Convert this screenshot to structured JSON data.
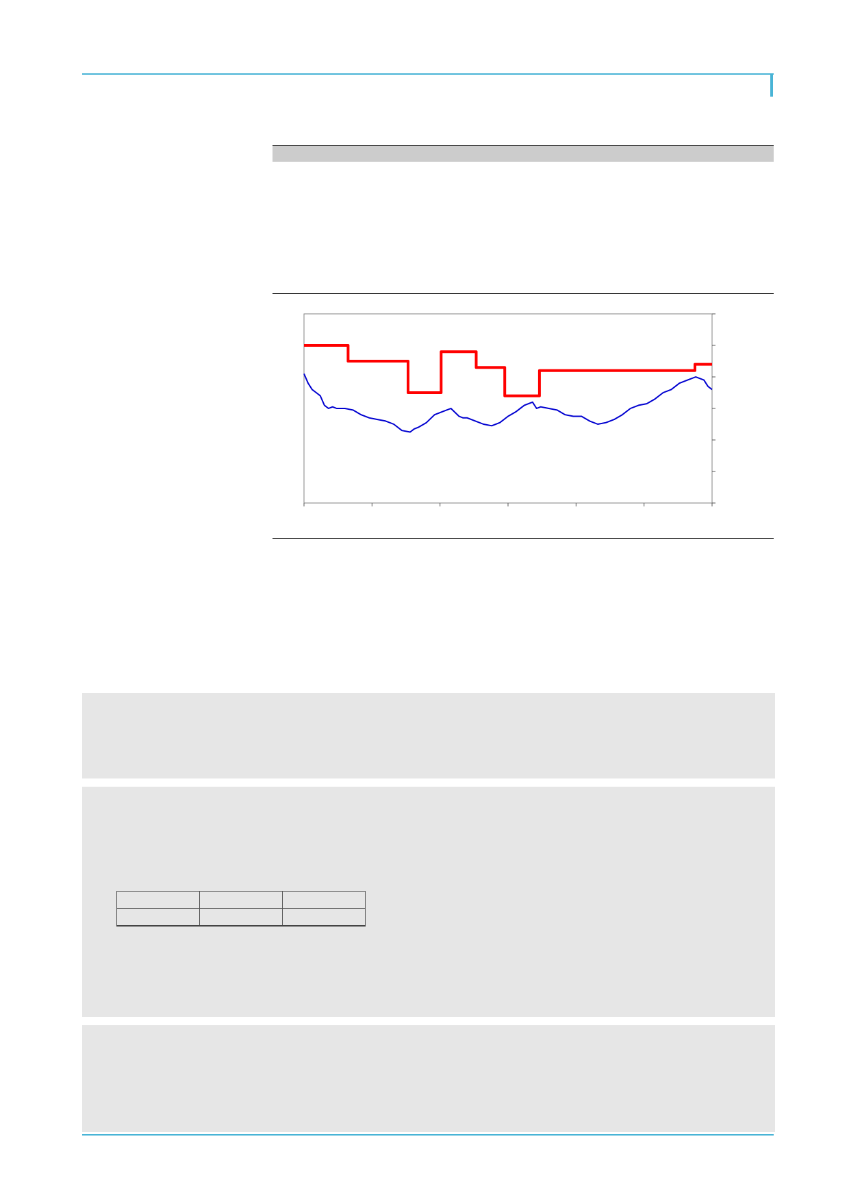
{
  "colors": {
    "rule": "#49b4d6",
    "panel_bg": "#e6e6e6",
    "header_band": "#cccccc",
    "series_red": "#ff0000",
    "series_blue": "#0000d0"
  },
  "table_header": {
    "label": ""
  },
  "mini_table": {
    "rows": [
      [
        "",
        "",
        ""
      ],
      [
        "",
        "",
        ""
      ]
    ]
  },
  "chart_data": {
    "type": "line",
    "title": "",
    "xlabel": "",
    "ylabel": "",
    "x_tick_count": 7,
    "y_tick_count": 7,
    "xlim": [
      0,
      100
    ],
    "ylim": [
      0,
      6
    ],
    "grid": false,
    "series": [
      {
        "color": "#ff0000",
        "step": true,
        "x": [
          0,
          10.8,
          10.8,
          25.5,
          25.5,
          33.6,
          33.6,
          42.2,
          42.2,
          49.2,
          49.2,
          57.7,
          57.7,
          95.8,
          95.8,
          100
        ],
        "values": [
          5.0,
          5.0,
          4.5,
          4.5,
          3.5,
          3.5,
          4.8,
          4.8,
          4.3,
          4.3,
          3.4,
          3.4,
          4.2,
          4.2,
          4.4,
          4.4
        ]
      },
      {
        "color": "#0000d0",
        "step": false,
        "x": [
          0,
          1,
          2,
          3,
          4,
          5,
          6,
          7,
          8,
          9,
          10,
          12,
          14,
          16,
          18,
          20,
          22,
          24,
          26,
          27,
          28,
          30,
          32,
          34,
          36,
          38,
          39,
          40,
          42,
          44,
          46,
          48,
          50,
          52,
          54,
          56,
          57,
          58,
          60,
          62,
          64,
          66,
          68,
          70,
          72,
          74,
          76,
          78,
          80,
          82,
          84,
          86,
          88,
          90,
          92,
          94,
          96,
          98,
          99,
          100
        ],
        "values": [
          4.1,
          3.8,
          3.6,
          3.5,
          3.4,
          3.1,
          3.0,
          3.05,
          3.0,
          3.0,
          3.0,
          2.95,
          2.8,
          2.7,
          2.65,
          2.6,
          2.5,
          2.3,
          2.25,
          2.35,
          2.4,
          2.55,
          2.8,
          2.9,
          3.0,
          2.75,
          2.7,
          2.7,
          2.6,
          2.5,
          2.45,
          2.55,
          2.75,
          2.9,
          3.1,
          3.2,
          3.0,
          3.05,
          3.0,
          2.95,
          2.8,
          2.75,
          2.75,
          2.6,
          2.5,
          2.55,
          2.65,
          2.8,
          3.0,
          3.1,
          3.15,
          3.3,
          3.5,
          3.6,
          3.8,
          3.9,
          4.0,
          3.9,
          3.7,
          3.6
        ]
      }
    ]
  }
}
